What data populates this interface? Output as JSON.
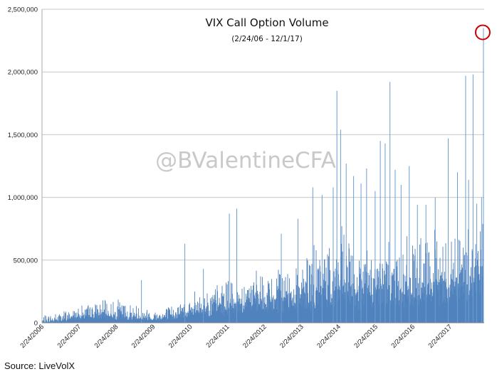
{
  "chart_data": {
    "type": "area",
    "title": "VIX Call Option Volume",
    "subtitle": "(2/24/06 - 12/1/17)",
    "xlabel": "",
    "ylabel": "",
    "ylim": [
      0,
      2500000
    ],
    "yticks": [
      0,
      500000,
      1000000,
      1500000,
      2000000,
      2500000
    ],
    "ytick_labels": [
      "0",
      "500,000",
      "1,000,000",
      "1,500,000",
      "2,000,000",
      "2,500,000"
    ],
    "xlim": [
      2006.0,
      2017.92
    ],
    "xticks": [
      2006,
      2007,
      2008,
      2009,
      2010,
      2011,
      2012,
      2013,
      2014,
      2015,
      2016,
      2017
    ],
    "xtick_labels": [
      "2/24/2006",
      "2/24/2007",
      "2/24/2008",
      "2/24/2009",
      "2/24/2010",
      "2/24/2011",
      "2/24/2012",
      "2/24/2013",
      "2/24/2014",
      "2/24/2015",
      "2/24/2016",
      "2/24/2017"
    ],
    "grid": "horizontal",
    "series_color": "#4f81bd",
    "envelope": {
      "x": [
        2006.0,
        2006.5,
        2007.0,
        2007.5,
        2008.0,
        2008.5,
        2009.0,
        2009.5,
        2010.0,
        2010.5,
        2011.0,
        2011.5,
        2012.0,
        2012.5,
        2013.0,
        2013.5,
        2014.0,
        2014.5,
        2015.0,
        2015.5,
        2016.0,
        2016.5,
        2017.0,
        2017.5,
        2017.92
      ],
      "base": [
        8000,
        15000,
        60000,
        75000,
        60000,
        45000,
        35000,
        55000,
        100000,
        120000,
        160000,
        200000,
        170000,
        220000,
        230000,
        280000,
        350000,
        300000,
        320000,
        330000,
        300000,
        330000,
        360000,
        420000,
        480000
      ],
      "peak": [
        60000,
        100000,
        150000,
        180000,
        200000,
        170000,
        120000,
        160000,
        240000,
        320000,
        380000,
        450000,
        420000,
        500000,
        600000,
        700000,
        850000,
        650000,
        700000,
        720000,
        700000,
        750000,
        800000,
        900000,
        1000000
      ]
    },
    "spikes": [
      {
        "x": 2008.68,
        "y": 340000
      },
      {
        "x": 2009.85,
        "y": 630000
      },
      {
        "x": 2010.35,
        "y": 430000
      },
      {
        "x": 2011.05,
        "y": 870000
      },
      {
        "x": 2011.25,
        "y": 910000
      },
      {
        "x": 2012.45,
        "y": 710000
      },
      {
        "x": 2012.9,
        "y": 830000
      },
      {
        "x": 2013.3,
        "y": 1080000
      },
      {
        "x": 2013.55,
        "y": 1020000
      },
      {
        "x": 2013.85,
        "y": 1080000
      },
      {
        "x": 2013.95,
        "y": 1850000
      },
      {
        "x": 2014.05,
        "y": 1540000
      },
      {
        "x": 2014.2,
        "y": 1270000
      },
      {
        "x": 2014.4,
        "y": 1170000
      },
      {
        "x": 2014.6,
        "y": 1110000
      },
      {
        "x": 2014.75,
        "y": 1230000
      },
      {
        "x": 2014.98,
        "y": 1050000
      },
      {
        "x": 2015.12,
        "y": 1450000
      },
      {
        "x": 2015.25,
        "y": 1430000
      },
      {
        "x": 2015.38,
        "y": 1920000
      },
      {
        "x": 2015.52,
        "y": 1220000
      },
      {
        "x": 2015.68,
        "y": 1100000
      },
      {
        "x": 2015.9,
        "y": 1250000
      },
      {
        "x": 2016.12,
        "y": 940000
      },
      {
        "x": 2016.35,
        "y": 940000
      },
      {
        "x": 2016.6,
        "y": 1000000
      },
      {
        "x": 2016.95,
        "y": 1470000
      },
      {
        "x": 2017.2,
        "y": 1200000
      },
      {
        "x": 2017.42,
        "y": 1970000
      },
      {
        "x": 2017.5,
        "y": 1140000
      },
      {
        "x": 2017.62,
        "y": 1980000
      },
      {
        "x": 2017.72,
        "y": 950000
      },
      {
        "x": 2017.85,
        "y": 1000000
      },
      {
        "x": 2017.9,
        "y": 2350000
      }
    ],
    "highlight": {
      "x": 2017.9,
      "y": 2350000,
      "color": "#cc0000"
    },
    "source": "Source: LiveVolX",
    "watermark": "@BValentineCFA"
  }
}
